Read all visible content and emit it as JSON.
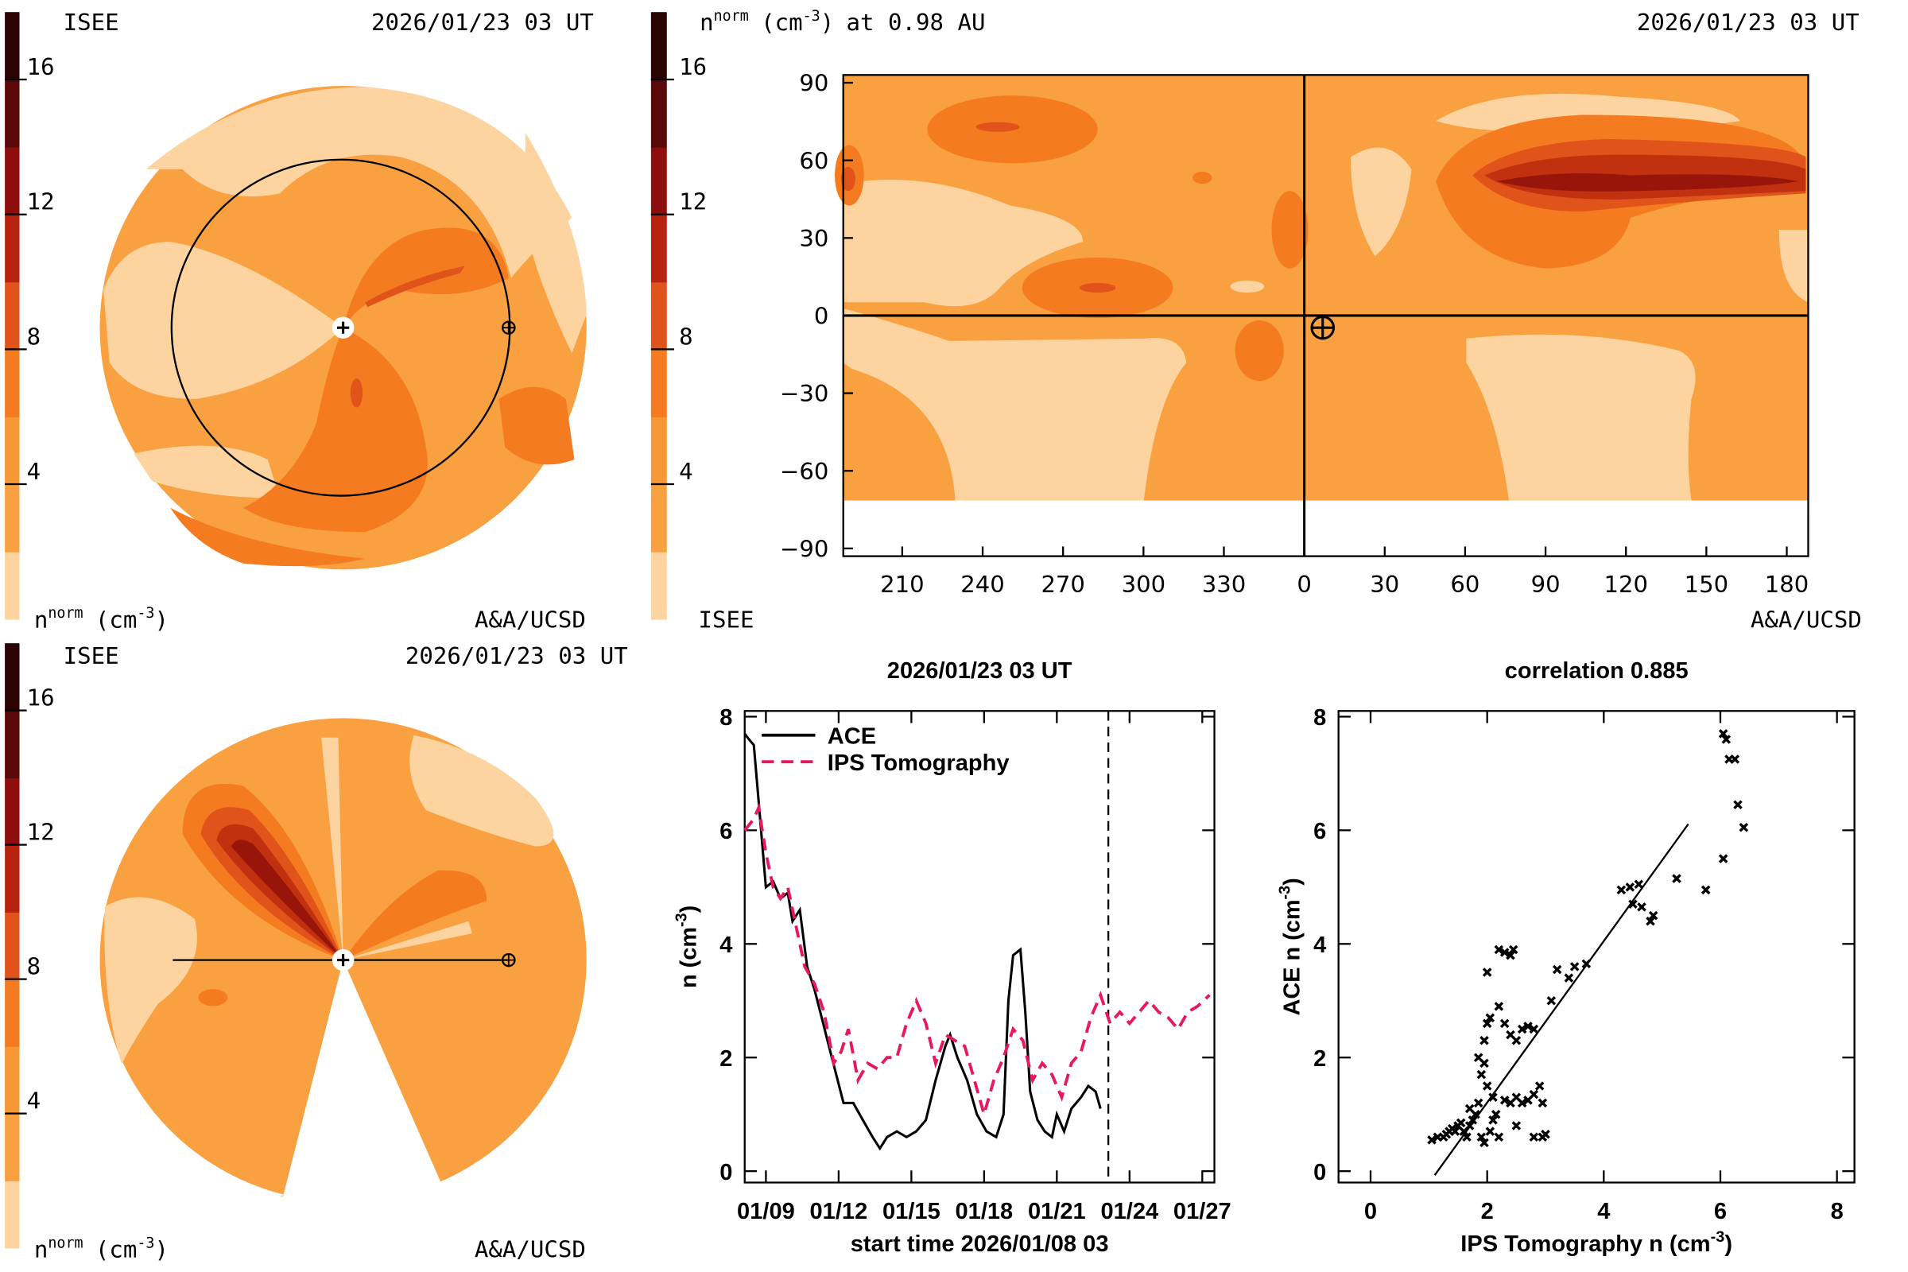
{
  "unit": {
    "symbol": "n",
    "sup": "norm",
    "open": "(cm",
    "exp": "-3",
    "close": ")"
  },
  "colorbar": {
    "lim": [
      0,
      18
    ],
    "ticks": [
      4,
      8,
      12,
      16
    ],
    "colors": [
      "#fdd3a0",
      "#f9a040",
      "#f89834",
      "#f57b20",
      "#e0531a",
      "#b8230f",
      "#8e0e0b",
      "#5a0808",
      "#2b0303"
    ]
  },
  "maps": [
    {
      "source": "ISEE",
      "time": "2026/01/23 03 UT",
      "credit": "A&A/UCSD"
    },
    {
      "source": "ISEE",
      "time": "2026/01/23 03 UT",
      "credit": "A&A/UCSD"
    }
  ],
  "synoptic": {
    "source": "ISEE",
    "time": "2026/01/23 03 UT",
    "credit": "A&A/UCSD",
    "suffix": "at 0.98 AU",
    "xlim": [
      188,
      548
    ],
    "ylim": [
      -93,
      93
    ],
    "xticks": [
      210,
      240,
      270,
      300,
      330,
      {
        "value": 360,
        "label": "0"
      },
      {
        "value": 390,
        "label": "30"
      },
      {
        "value": 420,
        "label": "60"
      },
      {
        "value": 450,
        "label": "90"
      },
      {
        "value": 480,
        "label": "120"
      },
      {
        "value": 510,
        "label": "150"
      },
      {
        "value": 540,
        "label": "180"
      }
    ],
    "yticks": [
      90,
      60,
      30,
      0,
      {
        "value": -30,
        "label": "−30"
      },
      {
        "value": -60,
        "label": "−60"
      },
      {
        "value": -90,
        "label": "−90"
      }
    ]
  },
  "chart_data": [
    {
      "type": "line",
      "title": "2026/01/23 03 UT",
      "x_label": "start time 2026/01/08 03",
      "y_label": {
        "text": "n (cm",
        "sup": "-3",
        "close": ")"
      },
      "xlim": [
        8.125,
        27.5
      ],
      "ylim": [
        -0.2,
        8.1
      ],
      "xticks": [
        {
          "value": 9,
          "label": "01/09"
        },
        {
          "value": 12,
          "label": "01/12"
        },
        {
          "value": 15,
          "label": "01/15"
        },
        {
          "value": 18,
          "label": "01/18"
        },
        {
          "value": 21,
          "label": "01/21"
        },
        {
          "value": 24,
          "label": "01/24"
        },
        {
          "value": 27,
          "label": "01/27"
        }
      ],
      "yticks": [
        0,
        2,
        4,
        6,
        8
      ],
      "legend": "upper left",
      "marker_x": 23.125,
      "series": [
        {
          "name": "ACE",
          "color": "#000000",
          "dash": false,
          "x": [
            8.125,
            8.3,
            8.5,
            8.7,
            9.0,
            9.3,
            9.6,
            9.9,
            10.1,
            10.4,
            10.7,
            11.0,
            11.3,
            11.6,
            11.9,
            12.2,
            12.6,
            13.0,
            13.4,
            13.7,
            14.0,
            14.4,
            14.8,
            15.2,
            15.6,
            16.0,
            16.4,
            16.6,
            16.9,
            17.3,
            17.7,
            18.1,
            18.5,
            18.8,
            19.0,
            19.2,
            19.5,
            19.7,
            19.9,
            20.2,
            20.5,
            20.8,
            21.0,
            21.3,
            21.6,
            22.0,
            22.3,
            22.6,
            22.8
          ],
          "values": [
            7.7,
            7.6,
            7.5,
            6.5,
            5.0,
            5.1,
            4.8,
            4.9,
            4.4,
            4.6,
            3.6,
            3.2,
            2.7,
            2.2,
            1.7,
            1.2,
            1.2,
            0.9,
            0.6,
            0.4,
            0.6,
            0.7,
            0.6,
            0.7,
            0.9,
            1.6,
            2.2,
            2.4,
            2.0,
            1.6,
            1.0,
            0.7,
            0.6,
            1.0,
            3.0,
            3.8,
            3.9,
            2.8,
            1.4,
            0.9,
            0.7,
            0.6,
            1.0,
            0.7,
            1.1,
            1.3,
            1.5,
            1.4,
            1.1
          ]
        },
        {
          "name": "IPS Tomography",
          "color": "#e8185a",
          "dash": true,
          "x": [
            8.125,
            8.5,
            8.7,
            9.0,
            9.3,
            9.6,
            9.9,
            10.2,
            10.6,
            11.0,
            11.4,
            11.8,
            12.1,
            12.4,
            12.8,
            13.2,
            13.6,
            14.0,
            14.4,
            14.8,
            15.2,
            15.6,
            16.0,
            16.4,
            16.8,
            17.2,
            17.6,
            18.0,
            18.4,
            18.8,
            19.2,
            19.6,
            20.0,
            20.4,
            20.8,
            21.2,
            21.6,
            22.0,
            22.4,
            22.8,
            23.2,
            23.6,
            24.0,
            24.4,
            24.8,
            25.2,
            25.6,
            26.0,
            26.4,
            26.8,
            27.3
          ],
          "values": [
            6.0,
            6.2,
            6.4,
            5.6,
            5.0,
            4.8,
            5.0,
            4.4,
            3.6,
            3.3,
            2.8,
            1.9,
            2.1,
            2.5,
            1.6,
            1.9,
            1.8,
            2.0,
            2.0,
            2.6,
            3.0,
            2.6,
            1.9,
            2.4,
            2.3,
            2.2,
            1.6,
            1.0,
            1.6,
            2.0,
            2.5,
            2.3,
            1.6,
            1.9,
            1.7,
            1.3,
            1.9,
            2.1,
            2.7,
            3.1,
            2.6,
            2.8,
            2.6,
            2.8,
            3.0,
            2.8,
            2.7,
            2.5,
            2.8,
            2.9,
            3.1
          ]
        }
      ]
    },
    {
      "type": "scatter",
      "title": "correlation 0.885",
      "x_label": {
        "text": "IPS Tomography n (cm",
        "sup": "-3",
        "close": ")"
      },
      "y_label": {
        "text": "ACE n (cm",
        "sup": "-3",
        "close": ")"
      },
      "xlim": [
        -0.55,
        8.3
      ],
      "ylim": [
        -0.2,
        8.1
      ],
      "xticks": [
        0,
        2,
        4,
        6,
        8
      ],
      "yticks": [
        0,
        2,
        4,
        6,
        8
      ],
      "color": "#000000",
      "x": [
        1.05,
        1.15,
        1.25,
        1.3,
        1.35,
        1.4,
        1.45,
        1.5,
        1.55,
        1.6,
        1.65,
        1.7,
        1.75,
        1.8,
        1.85,
        1.9,
        1.95,
        1.9,
        1.85,
        1.95,
        2.0,
        2.05,
        2.1,
        2.15,
        2.2,
        2.3,
        2.4,
        2.45,
        2.0,
        2.2,
        2.3,
        2.4,
        2.5,
        2.6,
        2.7,
        2.8,
        2.5,
        2.6,
        2.7,
        2.8,
        2.9,
        2.95,
        2.8,
        2.95,
        3.0,
        2.5,
        2.2,
        2.3,
        2.4,
        2.0,
        1.95,
        2.05,
        3.2,
        3.5,
        3.7,
        3.4,
        3.1,
        4.3,
        4.45,
        4.6,
        4.5,
        4.65,
        4.85,
        4.8,
        5.25,
        5.75,
        6.05,
        6.05,
        6.1,
        6.15,
        6.25,
        6.3,
        6.4,
        1.7,
        2.1
      ],
      "values": [
        0.55,
        0.6,
        0.6,
        0.65,
        0.7,
        0.75,
        0.7,
        0.8,
        0.85,
        0.7,
        0.6,
        0.8,
        0.9,
        1.0,
        1.2,
        0.6,
        0.5,
        1.7,
        2.0,
        2.3,
        1.5,
        0.7,
        1.3,
        1.0,
        3.9,
        3.85,
        3.8,
        3.9,
        3.5,
        2.9,
        2.6,
        2.4,
        2.3,
        2.5,
        2.55,
        2.5,
        1.3,
        1.2,
        1.25,
        1.35,
        1.5,
        1.2,
        0.6,
        0.6,
        0.65,
        0.8,
        0.6,
        1.25,
        1.2,
        2.6,
        1.9,
        2.7,
        3.55,
        3.6,
        3.65,
        3.4,
        3.0,
        4.95,
        5.0,
        5.05,
        4.7,
        4.65,
        4.5,
        4.4,
        5.15,
        4.95,
        5.5,
        7.7,
        7.6,
        7.25,
        7.25,
        6.45,
        6.05,
        1.1,
        0.9
      ],
      "fit": {
        "x": [
          1.1,
          5.45
        ],
        "values": [
          -0.07,
          6.11
        ]
      }
    }
  ]
}
